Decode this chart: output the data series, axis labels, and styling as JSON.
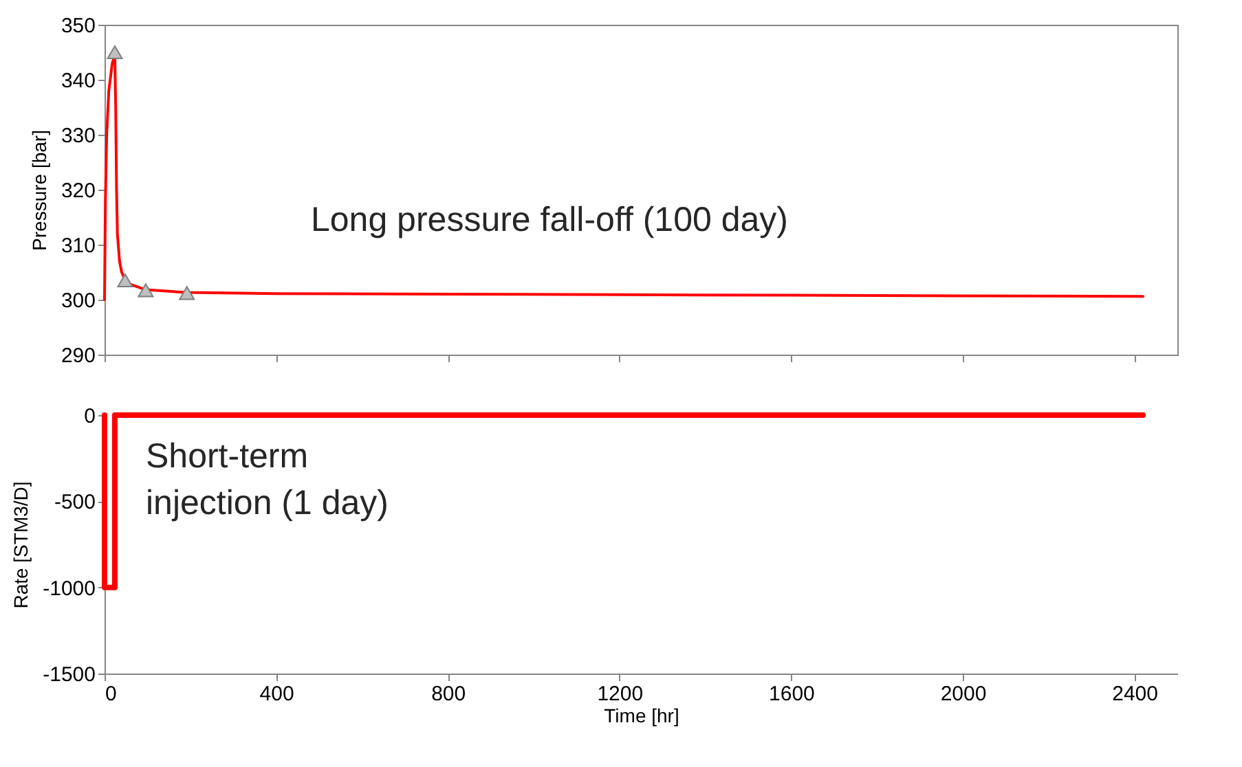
{
  "chart_data": [
    {
      "type": "line",
      "ylabel": "Pressure [bar]",
      "xlim": [
        0,
        2500
      ],
      "xticks": [
        0,
        400,
        800,
        1200,
        1600,
        2000,
        2400
      ],
      "ylim": [
        290,
        350
      ],
      "yticks": [
        290,
        300,
        310,
        320,
        330,
        340,
        350
      ],
      "tick_labels": "y",
      "grid": false,
      "series": [
        {
          "color": "#ff0000",
          "marker": "none",
          "x": [
            0,
            2,
            5,
            10,
            18,
            24,
            26,
            28,
            30,
            35,
            40,
            48,
            60,
            96,
            192,
            400,
            800,
            1200,
            1600,
            2000,
            2420
          ],
          "values": [
            300,
            318,
            330,
            338,
            343,
            344.5,
            335,
            320,
            312,
            307,
            305,
            303.5,
            302.8,
            301.8,
            301.3,
            301.1,
            301.0,
            300.9,
            300.8,
            300.7,
            300.6
          ]
        },
        {
          "type": "scatter",
          "color": "#bfbfbf",
          "marker": "triangle",
          "x": [
            24,
            48,
            96,
            192
          ],
          "values": [
            345,
            303.5,
            301.7,
            301.2
          ]
        }
      ],
      "annotations": [
        "Long pressure fall-off (100 day)"
      ]
    },
    {
      "type": "line",
      "xlabel": "Time [hr]",
      "ylabel": "Rate [STM3/D]",
      "xlim": [
        0,
        2500
      ],
      "xticks": [
        0,
        400,
        800,
        1200,
        1600,
        2000,
        2400
      ],
      "ylim": [
        -1500,
        0
      ],
      "yticks": [
        -1500,
        -1000,
        -500,
        0
      ],
      "grid": false,
      "series": [
        {
          "color": "#ff0000",
          "marker": "none",
          "x": [
            0,
            0,
            24,
            24,
            2420
          ],
          "values": [
            0,
            -1000,
            -1000,
            0,
            0
          ]
        }
      ],
      "annotations": [
        "Short-term\ninjection (1 day)"
      ]
    }
  ]
}
